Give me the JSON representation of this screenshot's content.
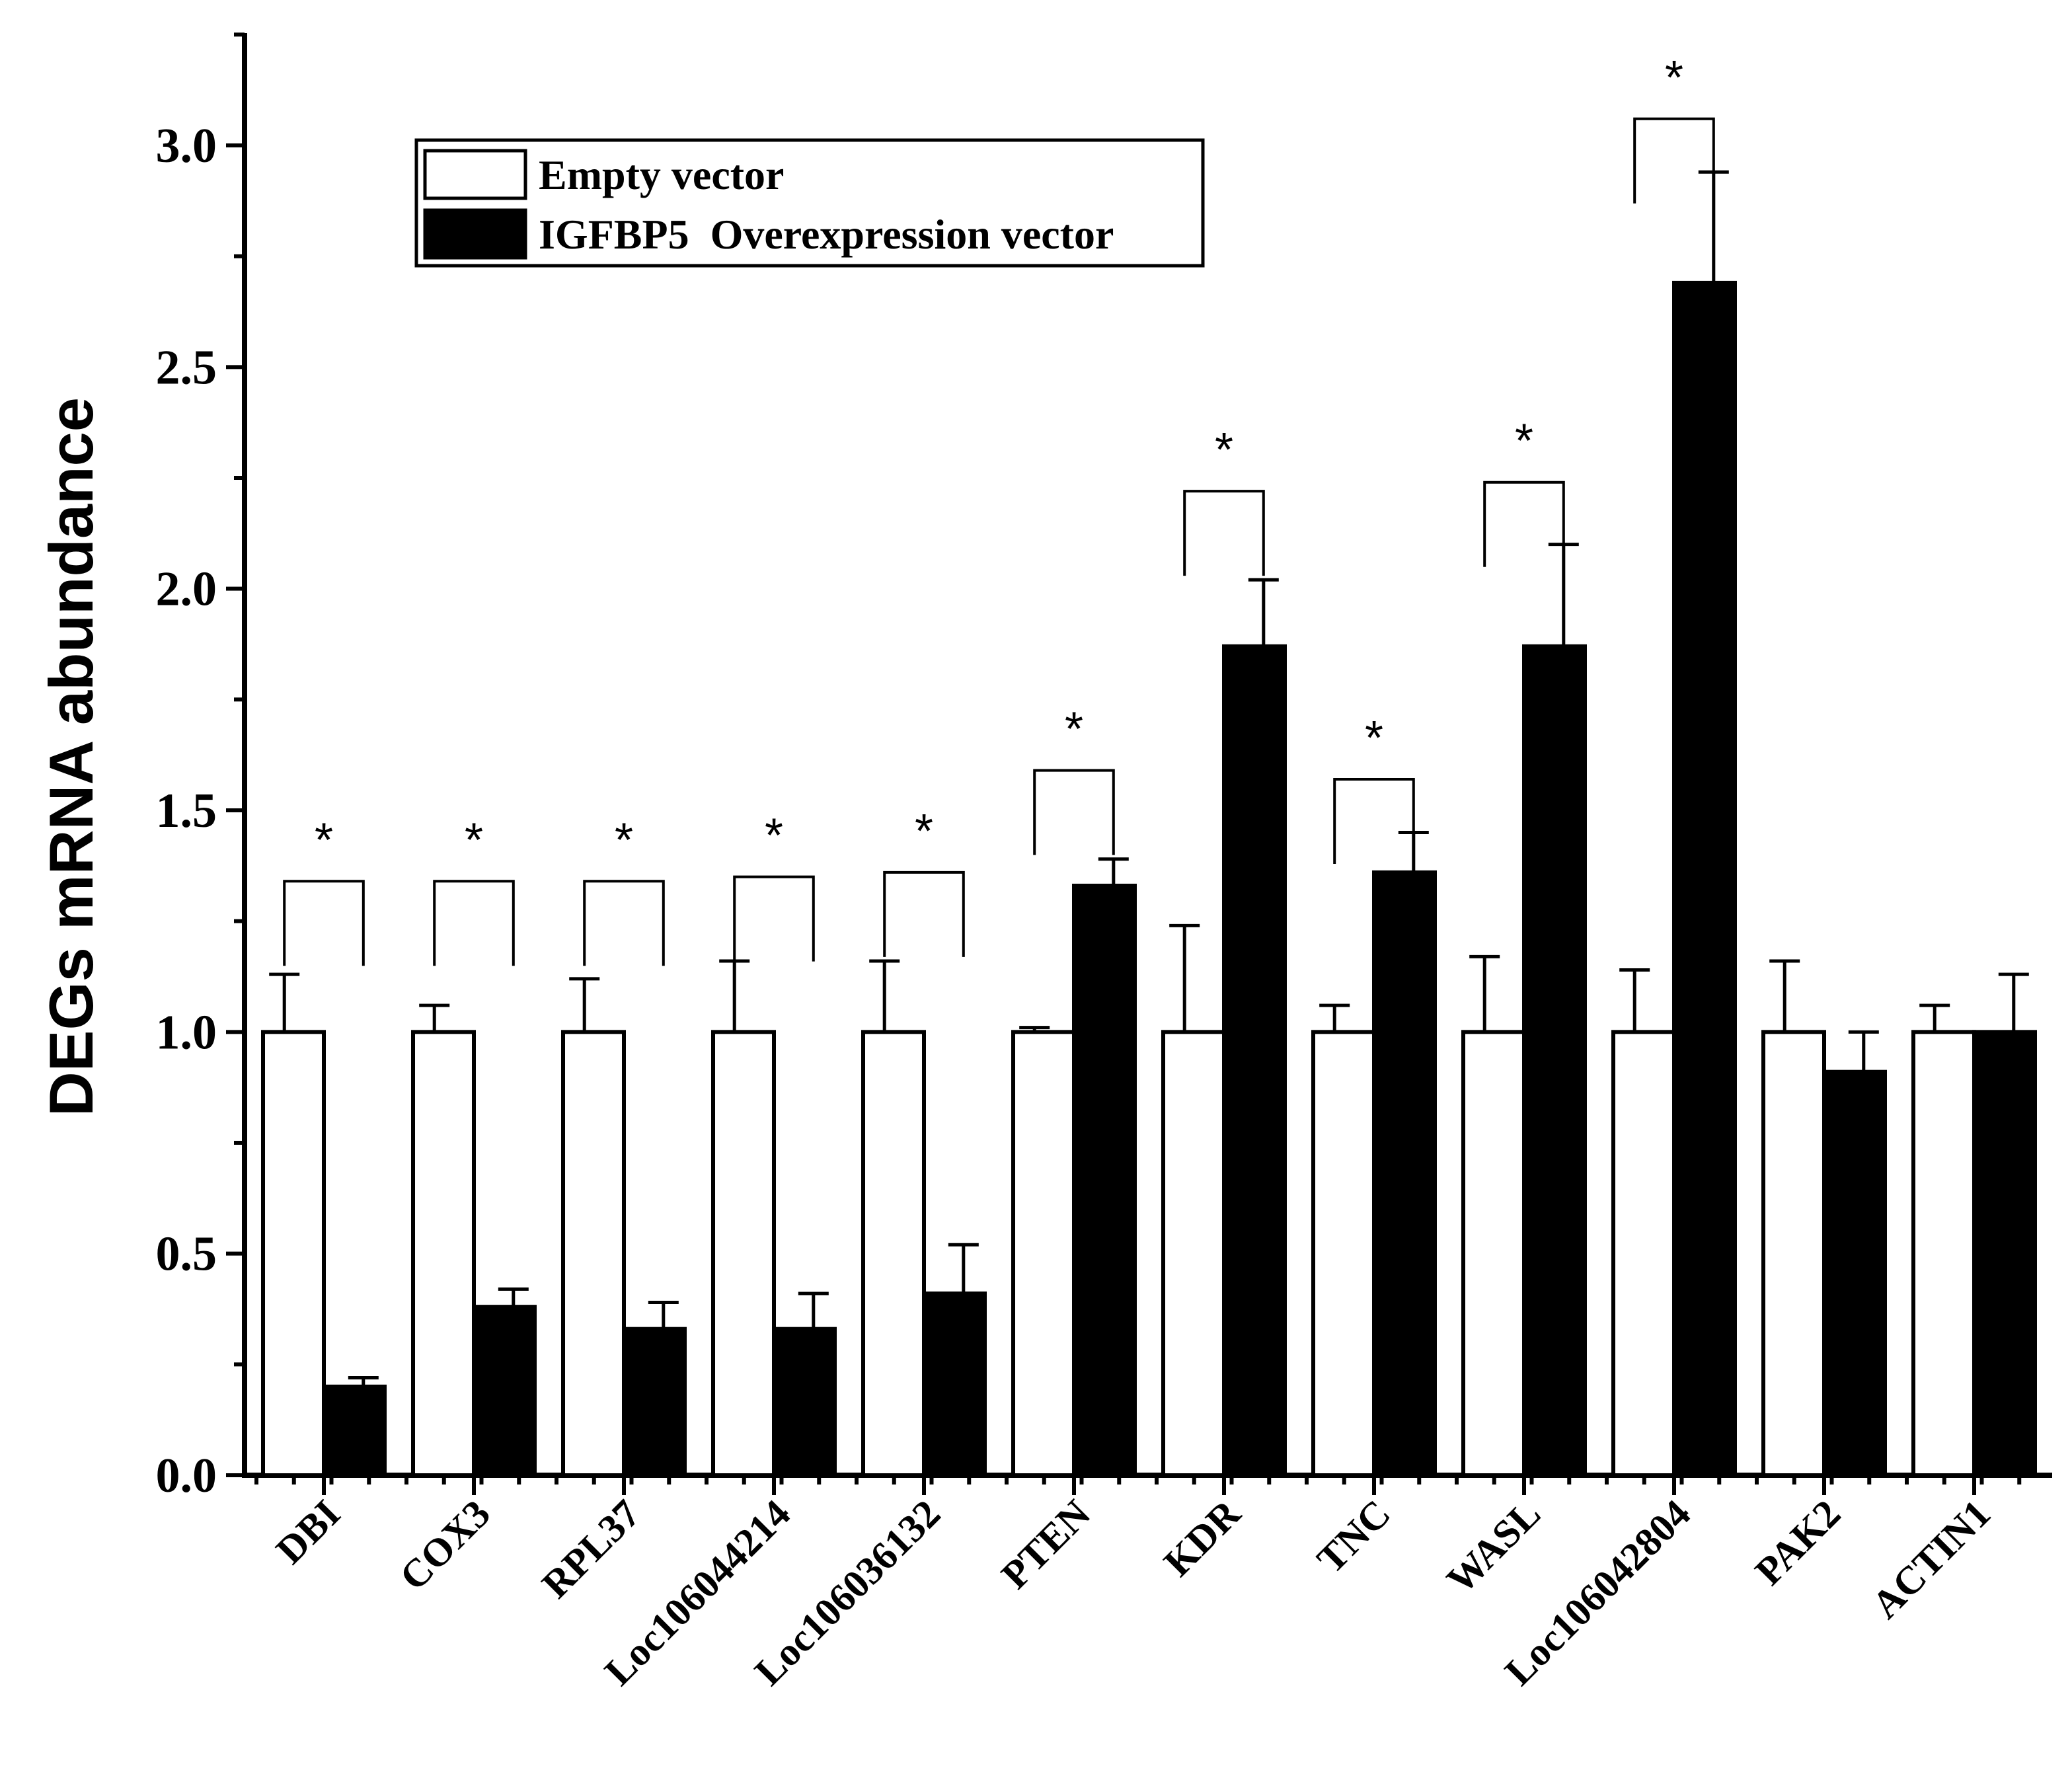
{
  "chart_data": {
    "type": "bar",
    "title": "",
    "xlabel": "",
    "ylabel": "DEGs mRNA abundance",
    "ylim": [
      0,
      3.25
    ],
    "yticks": [
      "0.0",
      "0.5",
      "1.0",
      "1.5",
      "2.0",
      "2.5",
      "3.0"
    ],
    "categories": [
      "DBI",
      "COX3",
      "RPL37",
      "Loc106044214",
      "Loc106036132",
      "PTEN",
      "KDR",
      "TNC",
      "WASL",
      "Loc106042804",
      "PAK2",
      "ACTIN1"
    ],
    "series": [
      {
        "name": "Empty vector",
        "color": "#ffffff",
        "values": [
          1.0,
          1.0,
          1.0,
          1.0,
          1.0,
          1.0,
          1.0,
          1.0,
          1.0,
          1.0,
          1.0,
          1.0
        ],
        "errors": [
          0.13,
          0.06,
          0.12,
          0.16,
          0.16,
          0.01,
          0.24,
          0.06,
          0.17,
          0.14,
          0.16,
          0.06
        ]
      },
      {
        "name": "IGFBP5  Overexpression vector",
        "color": "#000000",
        "values": [
          0.2,
          0.38,
          0.33,
          0.33,
          0.41,
          1.33,
          1.87,
          1.36,
          1.87,
          2.69,
          0.91,
          1.0
        ],
        "errors": [
          0.02,
          0.04,
          0.06,
          0.08,
          0.11,
          0.06,
          0.15,
          0.09,
          0.23,
          0.25,
          0.09,
          0.13
        ]
      }
    ],
    "significance": [
      {
        "category": "DBI",
        "label": "*",
        "level": 1.34
      },
      {
        "category": "COX3",
        "label": "*",
        "level": 1.34
      },
      {
        "category": "RPL37",
        "label": "*",
        "level": 1.34
      },
      {
        "category": "Loc106044214",
        "label": "*",
        "level": 1.35
      },
      {
        "category": "Loc106036132",
        "label": "*",
        "level": 1.36
      },
      {
        "category": "PTEN",
        "label": "*",
        "level": 1.59
      },
      {
        "category": "KDR",
        "label": "*",
        "level": 2.22
      },
      {
        "category": "TNC",
        "label": "*",
        "level": 1.57
      },
      {
        "category": "WASL",
        "label": "*",
        "level": 2.24
      },
      {
        "category": "Loc106042804",
        "label": "*",
        "level": 3.06
      }
    ],
    "legend_position": "top-left"
  }
}
